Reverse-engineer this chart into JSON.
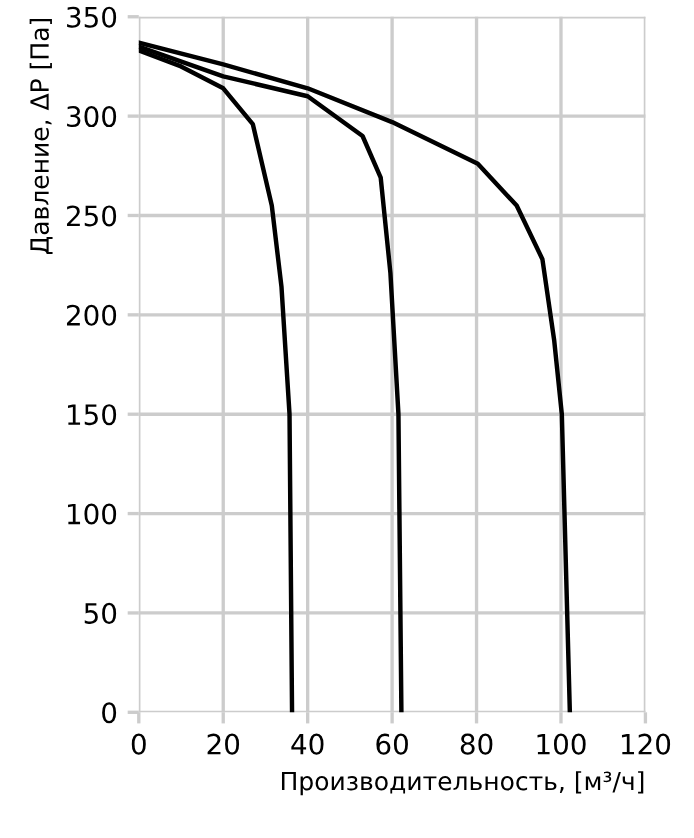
{
  "chart_data": {
    "type": "line",
    "xlabel": "Производительность, [м³/ч]",
    "ylabel": "Давление, ΔP [Па]",
    "xlim": [
      0,
      120
    ],
    "ylim": [
      0,
      350
    ],
    "xticks": [
      0,
      20,
      40,
      60,
      80,
      100,
      120
    ],
    "yticks": [
      0,
      50,
      100,
      150,
      200,
      250,
      300,
      350
    ],
    "grid": true,
    "marker": "none",
    "line_style": "solid",
    "series": [
      {
        "color": "#000000",
        "x": [
          0,
          10,
          20,
          27,
          31.5,
          33.8,
          35.7,
          36.3
        ],
        "values": [
          333,
          325,
          314,
          296,
          255,
          214,
          150,
          0
        ]
      },
      {
        "color": "#000000",
        "x": [
          0,
          20,
          40,
          53,
          57.3,
          59.6,
          61.5,
          62.2
        ],
        "values": [
          335,
          320,
          310,
          290,
          269,
          221,
          150,
          0
        ]
      },
      {
        "color": "#000000",
        "x": [
          0,
          20,
          40,
          60,
          80.3,
          89.5,
          95.6,
          98.4,
          100.2,
          102.1
        ],
        "values": [
          337,
          326,
          314,
          297,
          276,
          255,
          228,
          187,
          150,
          0
        ]
      }
    ]
  }
}
